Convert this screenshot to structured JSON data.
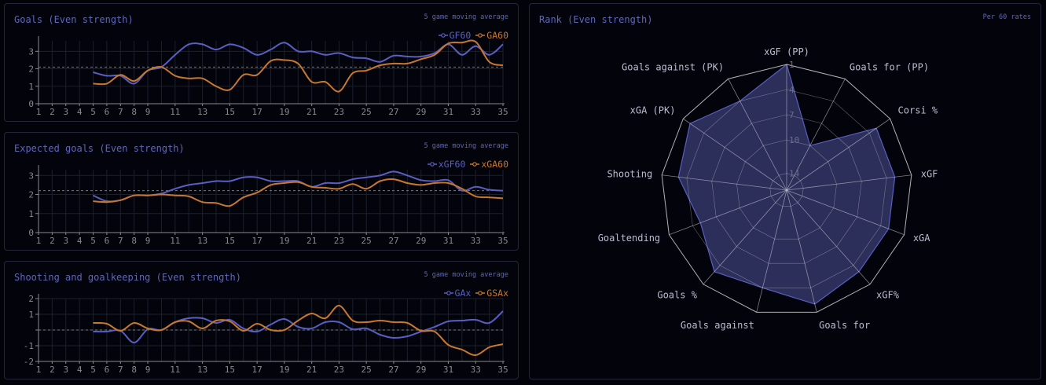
{
  "colors": {
    "series_a": "#5a5ec2",
    "series_b": "#c8772e",
    "axis": "#8a8a8a",
    "grid": "#1c1f2c",
    "radar_fill": "#2f3160",
    "radar_line": "#5a5ec2",
    "web": "#cfcfd8"
  },
  "panels": {
    "goals": {
      "title": "Goals (Even strength)",
      "note": "5 game moving average"
    },
    "xgoals": {
      "title": "Expected goals (Even strength)",
      "note": "5 game moving average"
    },
    "shooting": {
      "title": "Shooting and goalkeeping (Even strength)",
      "note": "5 game moving average"
    },
    "rank": {
      "title": "Rank (Even strength)",
      "note": "Per 60 rates"
    }
  },
  "chart_data": [
    {
      "type": "line",
      "title": "Goals (Even strength)",
      "x": [
        5,
        6,
        7,
        8,
        9,
        10,
        11,
        12,
        13,
        14,
        15,
        16,
        17,
        18,
        19,
        20,
        21,
        22,
        23,
        24,
        25,
        26,
        27,
        28,
        29,
        30,
        31,
        32,
        33,
        34,
        35
      ],
      "x_ticks": [
        "1",
        "2",
        "3",
        "4",
        "5",
        "6",
        "7",
        "8",
        "9",
        "11",
        "13",
        "15",
        "17",
        "19",
        "21",
        "23",
        "25",
        "27",
        "29",
        "31",
        "33",
        "35"
      ],
      "y_ticks": [
        "0",
        "1",
        "2",
        "3"
      ],
      "ylim": [
        0,
        3.6
      ],
      "reference_line": 2.1,
      "series": [
        {
          "name": "GF60",
          "values": [
            1.8,
            1.6,
            1.6,
            1.15,
            1.9,
            2.1,
            2.8,
            3.4,
            3.4,
            3.1,
            3.4,
            3.2,
            2.8,
            3.1,
            3.5,
            3.0,
            3.0,
            2.8,
            2.9,
            2.65,
            2.6,
            2.4,
            2.75,
            2.7,
            2.7,
            2.9,
            3.4,
            2.8,
            3.3,
            2.8,
            3.4
          ]
        },
        {
          "name": "GA60",
          "values": [
            1.15,
            1.15,
            1.65,
            1.3,
            1.9,
            2.1,
            1.6,
            1.45,
            1.45,
            1.0,
            0.8,
            1.65,
            1.65,
            2.45,
            2.5,
            2.3,
            1.25,
            1.25,
            0.7,
            1.75,
            1.9,
            2.2,
            2.3,
            2.3,
            2.55,
            2.8,
            3.45,
            3.5,
            3.55,
            2.4,
            2.2
          ]
        }
      ]
    },
    {
      "type": "line",
      "title": "Expected goals (Even strength)",
      "x": [
        5,
        6,
        7,
        8,
        9,
        10,
        11,
        12,
        13,
        14,
        15,
        16,
        17,
        18,
        19,
        20,
        21,
        22,
        23,
        24,
        25,
        26,
        27,
        28,
        29,
        30,
        31,
        32,
        33,
        34,
        35
      ],
      "x_ticks": [
        "1",
        "2",
        "3",
        "4",
        "5",
        "6",
        "7",
        "8",
        "9",
        "11",
        "13",
        "15",
        "17",
        "19",
        "21",
        "23",
        "25",
        "27",
        "29",
        "31",
        "33",
        "35"
      ],
      "y_ticks": [
        "0",
        "1",
        "2",
        "3"
      ],
      "ylim": [
        0,
        3.3
      ],
      "reference_line": 2.2,
      "series": [
        {
          "name": "xGF60",
          "values": [
            1.95,
            1.65,
            1.7,
            1.95,
            1.95,
            2.05,
            2.3,
            2.5,
            2.6,
            2.7,
            2.7,
            2.9,
            2.9,
            2.7,
            2.7,
            2.7,
            2.4,
            2.6,
            2.6,
            2.8,
            2.9,
            3.0,
            3.2,
            3.0,
            2.75,
            2.7,
            2.75,
            2.2,
            2.4,
            2.25,
            2.2
          ]
        },
        {
          "name": "xGA60",
          "values": [
            1.65,
            1.6,
            1.7,
            1.95,
            1.95,
            2.0,
            1.95,
            1.9,
            1.6,
            1.55,
            1.4,
            1.85,
            2.1,
            2.5,
            2.6,
            2.65,
            2.4,
            2.35,
            2.3,
            2.55,
            2.3,
            2.7,
            2.8,
            2.6,
            2.5,
            2.6,
            2.6,
            2.3,
            1.9,
            1.85,
            1.8
          ]
        }
      ]
    },
    {
      "type": "line",
      "title": "Shooting and goalkeeping (Even strength)",
      "x": [
        5,
        6,
        7,
        8,
        9,
        10,
        11,
        12,
        13,
        14,
        15,
        16,
        17,
        18,
        19,
        20,
        21,
        22,
        23,
        24,
        25,
        26,
        27,
        28,
        29,
        30,
        31,
        32,
        33,
        34,
        35
      ],
      "x_ticks": [
        "1",
        "2",
        "3",
        "4",
        "5",
        "6",
        "7",
        "8",
        "9",
        "11",
        "13",
        "15",
        "17",
        "19",
        "21",
        "23",
        "25",
        "27",
        "29",
        "31",
        "33",
        "35"
      ],
      "y_ticks": [
        "2",
        "1",
        "",
        "-1",
        "-2"
      ],
      "ylim": [
        -2,
        2
      ],
      "reference_line": 0,
      "series": [
        {
          "name": "GAx",
          "values": [
            -0.1,
            -0.1,
            -0.05,
            -0.8,
            0.05,
            0.0,
            0.5,
            0.75,
            0.75,
            0.45,
            0.65,
            0.1,
            -0.1,
            0.35,
            0.7,
            0.2,
            0.1,
            0.5,
            0.5,
            0.05,
            0.1,
            -0.3,
            -0.5,
            -0.4,
            -0.1,
            0.2,
            0.55,
            0.6,
            0.65,
            0.45,
            1.2
          ]
        },
        {
          "name": "GSAx",
          "values": [
            0.45,
            0.4,
            -0.05,
            0.45,
            0.1,
            0.0,
            0.5,
            0.55,
            0.1,
            0.6,
            0.55,
            -0.05,
            0.4,
            0.0,
            0.0,
            0.6,
            1.05,
            0.75,
            1.55,
            0.6,
            0.5,
            0.6,
            0.5,
            0.45,
            -0.05,
            -0.1,
            -0.95,
            -1.25,
            -1.6,
            -1.1,
            -0.9
          ]
        }
      ]
    },
    {
      "type": "radar",
      "title": "Rank (Even strength)",
      "axes": [
        "xGF (PP)",
        "Goals for (PP)",
        "Corsi %",
        "xGF",
        "xGA",
        "xGF%",
        "Goals for",
        "Goals against",
        "Goals %",
        "Goaltending",
        "Shooting",
        "xGA (PK)",
        "Goals against (PK)"
      ],
      "rank_ticks": [
        "1",
        "4",
        "7",
        "10",
        "14"
      ],
      "rank_range": [
        1,
        16
      ],
      "values": [
        1,
        10,
        3,
        3,
        3,
        3,
        2,
        4,
        3,
        5,
        3,
        2,
        4
      ]
    }
  ]
}
